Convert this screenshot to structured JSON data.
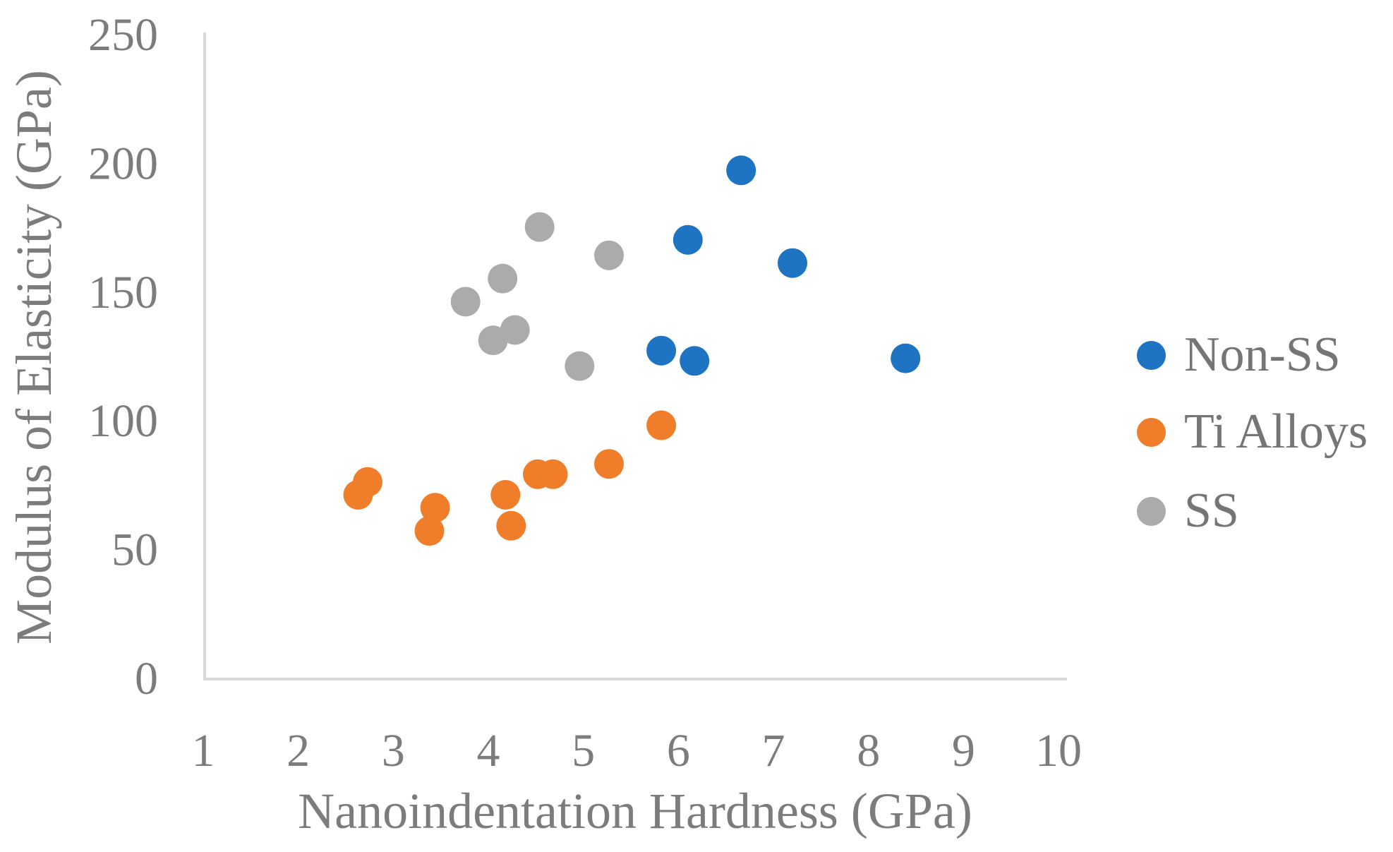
{
  "chart_data": {
    "type": "scatter",
    "title": "",
    "xlabel": "Nanoindentation Hardness (GPa)",
    "ylabel": "Modulus of Elasticity (GPa)",
    "x_ticks": [
      1,
      2,
      3,
      4,
      5,
      6,
      7,
      8,
      9,
      10
    ],
    "y_ticks": [
      0,
      50,
      100,
      150,
      200,
      250
    ],
    "xlim": [
      1,
      10.1
    ],
    "ylim": [
      0,
      250
    ],
    "grid": false,
    "legend_position": "right",
    "axis_line_color": "#d9d9d9",
    "text_color": "#7c7c7c",
    "series": [
      {
        "name": "Non-SS",
        "color": "#1e73c2",
        "points": [
          [
            5.82,
            127
          ],
          [
            6.1,
            170
          ],
          [
            6.17,
            123
          ],
          [
            6.66,
            197
          ],
          [
            7.2,
            161
          ],
          [
            8.39,
            124
          ]
        ]
      },
      {
        "name": "Ti Alloys",
        "color": "#f07d2a",
        "points": [
          [
            2.63,
            71
          ],
          [
            2.73,
            76
          ],
          [
            3.38,
            57
          ],
          [
            3.44,
            66
          ],
          [
            4.18,
            71
          ],
          [
            4.24,
            59
          ],
          [
            4.52,
            79
          ],
          [
            4.68,
            79
          ],
          [
            5.27,
            83
          ],
          [
            5.82,
            98
          ]
        ]
      },
      {
        "name": "SS",
        "color": "#ababab",
        "points": [
          [
            3.76,
            146
          ],
          [
            4.05,
            131
          ],
          [
            4.15,
            155
          ],
          [
            4.28,
            135
          ],
          [
            4.54,
            175
          ],
          [
            4.96,
            121
          ],
          [
            5.27,
            164
          ]
        ]
      }
    ]
  }
}
